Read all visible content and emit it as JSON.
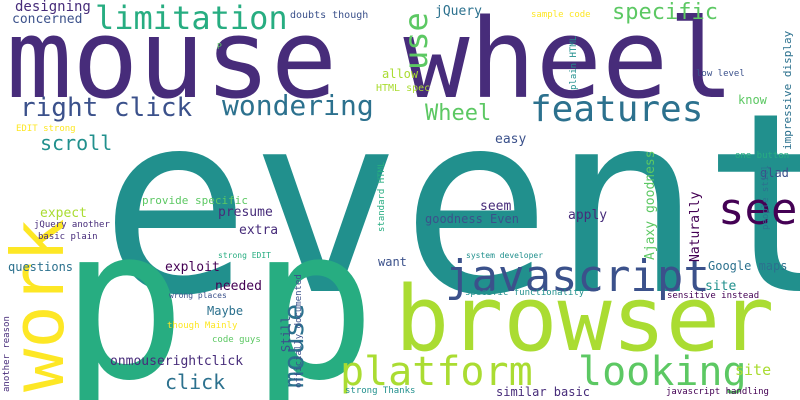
{
  "palette": {
    "dark_purple": "#440154",
    "indigo": "#472c7a",
    "slate_blue": "#3b518b",
    "blue": "#2c718e",
    "teal": "#21908d",
    "green_teal": "#27ad81",
    "green": "#5cc863",
    "lime": "#aadc32",
    "yellow": "#fde725"
  },
  "words": [
    {
      "text": "event",
      "color": "#21908d",
      "vertical": false
    },
    {
      "text": "p",
      "color": "#27ad81",
      "vertical": false
    },
    {
      "text": "p",
      "color": "#27ad81",
      "vertical": false
    },
    {
      "text": "mouse wheel",
      "color": "#472c7a",
      "vertical": false
    },
    {
      "text": "browser",
      "color": "#aadc32",
      "vertical": false
    },
    {
      "text": "work",
      "color": "#fde725",
      "vertical": true
    },
    {
      "text": "javascript",
      "color": "#3b518b",
      "vertical": false
    },
    {
      "text": "see",
      "color": "#440154",
      "vertical": false
    },
    {
      "text": "features",
      "color": "#2c718e",
      "vertical": false
    },
    {
      "text": "platform",
      "color": "#aadc32",
      "vertical": false
    },
    {
      "text": "looking",
      "color": "#5cc863",
      "vertical": false
    },
    {
      "text": "limitation",
      "color": "#27ad81",
      "vertical": false
    },
    {
      "text": "wondering",
      "color": "#2c718e",
      "vertical": false
    },
    {
      "text": "right click",
      "color": "#3b518b",
      "vertical": false
    },
    {
      "text": "mouse",
      "color": "#2c718e",
      "vertical": true
    },
    {
      "text": "use",
      "color": "#5cc863",
      "vertical": true
    },
    {
      "text": "specific",
      "color": "#5cc863",
      "vertical": false
    },
    {
      "text": "Wheel",
      "color": "#5cc863",
      "vertical": false
    },
    {
      "text": "scroll",
      "color": "#21908d",
      "vertical": false
    },
    {
      "text": "click",
      "color": "#2c718e",
      "vertical": false
    },
    {
      "text": "designing",
      "color": "#472c7a",
      "vertical": false
    },
    {
      "text": "concerned",
      "color": "#3b518b",
      "vertical": false
    },
    {
      "text": "doubts though",
      "color": "#3b518b",
      "vertical": false
    },
    {
      "text": "jQuery",
      "color": "#2c718e",
      "vertical": false
    },
    {
      "text": "sample code",
      "color": "#fde725",
      "vertical": false
    },
    {
      "text": "P",
      "color": "#5cc863",
      "vertical": false
    },
    {
      "text": "allow",
      "color": "#aadc32",
      "vertical": false
    },
    {
      "text": "HTML spec",
      "color": "#aadc32",
      "vertical": false
    },
    {
      "text": "plain HTML",
      "color": "#21908d",
      "vertical": true
    },
    {
      "text": "low level",
      "color": "#3b518b",
      "vertical": false
    },
    {
      "text": "know",
      "color": "#5cc863",
      "vertical": false
    },
    {
      "text": "impressive display",
      "color": "#2c718e",
      "vertical": true
    },
    {
      "text": "easy",
      "color": "#3b518b",
      "vertical": false
    },
    {
      "text": "EDIT strong",
      "color": "#fde725",
      "vertical": false
    },
    {
      "text": "Ajaxy goodness",
      "color": "#5cc863",
      "vertical": true
    },
    {
      "text": "one button",
      "color": "#27ad81",
      "vertical": false
    },
    {
      "text": "glad",
      "color": "#3b518b",
      "vertical": false
    },
    {
      "text": "people still",
      "color": "#2c718e",
      "vertical": true
    },
    {
      "text": "provide specific",
      "color": "#5cc863",
      "vertical": false
    },
    {
      "text": "presume",
      "color": "#472c7a",
      "vertical": false
    },
    {
      "text": "expect",
      "color": "#aadc32",
      "vertical": false
    },
    {
      "text": "seem",
      "color": "#472c7a",
      "vertical": false
    },
    {
      "text": "goodness Even",
      "color": "#3b518b",
      "vertical": false
    },
    {
      "text": "apply",
      "color": "#472c7a",
      "vertical": false
    },
    {
      "text": "Naturally",
      "color": "#440154",
      "vertical": true
    },
    {
      "text": "standard HTML",
      "color": "#27ad81",
      "vertical": true
    },
    {
      "text": "jQuery another",
      "color": "#472c7a",
      "vertical": false
    },
    {
      "text": "basic plain",
      "color": "#472c7a",
      "vertical": false
    },
    {
      "text": "extra",
      "color": "#472c7a",
      "vertical": false
    },
    {
      "text": "questions",
      "color": "#2c718e",
      "vertical": false
    },
    {
      "text": "exploit",
      "color": "#440154",
      "vertical": false
    },
    {
      "text": "needed",
      "color": "#440154",
      "vertical": false
    },
    {
      "text": "strong EDIT",
      "color": "#27ad81",
      "vertical": false
    },
    {
      "text": "system developer",
      "color": "#21908d",
      "vertical": false
    },
    {
      "text": "want",
      "color": "#3b518b",
      "vertical": false
    },
    {
      "text": "Google maps",
      "color": "#2c718e",
      "vertical": false
    },
    {
      "text": "site",
      "color": "#21908d",
      "vertical": false
    },
    {
      "text": "specific functionality",
      "color": "#21908d",
      "vertical": false
    },
    {
      "text": "sensitive instead",
      "color": "#440154",
      "vertical": false
    },
    {
      "text": "wrong places",
      "color": "#3b518b",
      "vertical": false
    },
    {
      "text": "Maybe",
      "color": "#2c718e",
      "vertical": false
    },
    {
      "text": "though Mainly",
      "color": "#fde725",
      "vertical": false
    },
    {
      "text": "code guys",
      "color": "#5cc863",
      "vertical": false
    },
    {
      "text": "Still",
      "color": "#3b518b",
      "vertical": true
    },
    {
      "text": "officially documented",
      "color": "#3b518b",
      "vertical": true
    },
    {
      "text": "onmouserightclick",
      "color": "#472c7a",
      "vertical": false
    },
    {
      "text": "another reason",
      "color": "#472c7a",
      "vertical": true
    },
    {
      "text": "similar basic",
      "color": "#472c7a",
      "vertical": false
    },
    {
      "text": "strong Thanks",
      "color": "#21908d",
      "vertical": false
    },
    {
      "text": "javascript handling",
      "color": "#440154",
      "vertical": false
    },
    {
      "text": "site",
      "color": "#aadc32",
      "vertical": false
    }
  ]
}
